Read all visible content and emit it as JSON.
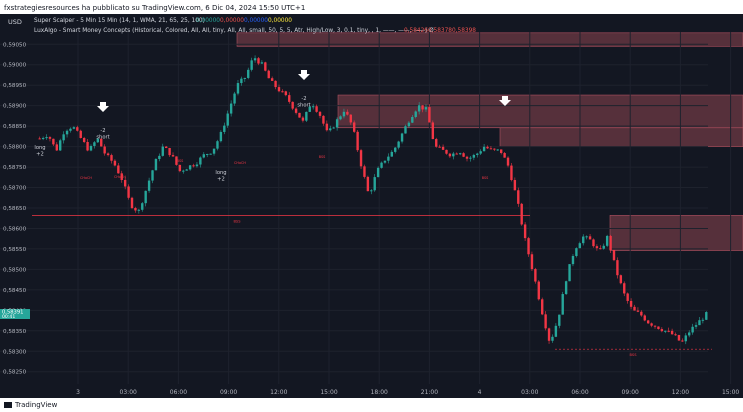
{
  "attribution": "fxstrategiesresources ha pubblicato su TradingView.com, 6 Dic 04, 2024 15:50 UTC+1",
  "currency": "USD",
  "indicators": {
    "super_scalper": {
      "label": "Super Scalper - 5 Min 15 Min (14, 1, WMA, 21, 65, 25, 100)",
      "values": [
        "0,00000",
        "0,00000",
        "0,00000",
        "0,00000"
      ],
      "colors": [
        "#26a69a",
        "#ef5350",
        "#2962ff",
        "#ffeb3b"
      ]
    },
    "luxalgo": {
      "label": "LuxAlgo - Smart Money Concepts (Historical, Colored, All, All, tiny, All, All, small, 50, 5, 5, Atr, High/Low, 3, 0.1, tiny, , 1, ——, ——, ——) Ø",
      "values": [
        "0,58426",
        "0,58378",
        "0,58398"
      ],
      "colors": [
        "#ef5350",
        "#ef5350",
        "#ef5350"
      ]
    }
  },
  "colors": {
    "bull": "#26a69a",
    "bear": "#f23645",
    "ob_zone": "#6e3a44",
    "bos_line": "#f23645"
  },
  "price_axis": {
    "labels": [
      "0,59050",
      "0,59000",
      "0,58950",
      "0,58900",
      "0,58850",
      "0,58800",
      "0,58750",
      "0,58700",
      "0,58650",
      "0,58600",
      "0,58550",
      "0,58500",
      "0,58450",
      "0,58400",
      "0,58350",
      "0,58300",
      "0,58250"
    ],
    "current_price": "0,58391",
    "current_countdown": "00:41"
  },
  "time_axis": {
    "labels": [
      "3",
      "03:00",
      "06:00",
      "09:00",
      "12:00",
      "15:00",
      "18:00",
      "21:00",
      "4",
      "03:00",
      "06:00",
      "09:00",
      "12:00",
      "15:00"
    ]
  },
  "signals": [
    {
      "text": "long +2",
      "kind": "long"
    },
    {
      "text": "-2 short",
      "kind": "short"
    },
    {
      "text": "long +2",
      "kind": "long"
    },
    {
      "text": "-2 short",
      "kind": "short"
    }
  ],
  "structure_labels": [
    "BSS",
    "BSS",
    "CHoCH",
    "CHoCH",
    "BSS",
    "BSS",
    "BSS",
    "CHoCH"
  ],
  "footer": {
    "brand": "TradingView"
  },
  "chart_data": {
    "type": "candlestick",
    "symbol_axis_unit": "USD",
    "ylim": [
      0.5822,
      0.5908
    ],
    "y_ticks": [
      0.5905,
      0.59,
      0.5895,
      0.589,
      0.5885,
      0.588,
      0.5875,
      0.587,
      0.5865,
      0.586,
      0.5855,
      0.585,
      0.5845,
      0.584,
      0.5835,
      0.583,
      0.5825
    ],
    "x_tick_labels": [
      "3",
      "03:00",
      "06:00",
      "09:00",
      "12:00",
      "15:00",
      "18:00",
      "21:00",
      "4",
      "03:00",
      "06:00",
      "09:00",
      "12:00",
      "15:00"
    ],
    "path_points": [
      0.5882,
      0.5883,
      0.5879,
      0.5884,
      0.5885,
      0.5882,
      0.5879,
      0.5882,
      0.5878,
      0.5876,
      0.5872,
      0.5866,
      0.5864,
      0.587,
      0.5876,
      0.588,
      0.5878,
      0.5874,
      0.5875,
      0.5876,
      0.5878,
      0.5879,
      0.5883,
      0.5889,
      0.5895,
      0.5897,
      0.5902,
      0.59,
      0.5896,
      0.5894,
      0.5892,
      0.5889,
      0.5886,
      0.5891,
      0.5888,
      0.5883,
      0.5886,
      0.5889,
      0.5885,
      0.5876,
      0.5868,
      0.5874,
      0.5877,
      0.5879,
      0.5883,
      0.5887,
      0.589,
      0.5889,
      0.588,
      0.5879,
      0.5878,
      0.5879,
      0.5877,
      0.5878,
      0.588,
      0.5879,
      0.5879,
      0.5875,
      0.5867,
      0.5857,
      0.5849,
      0.584,
      0.5832,
      0.5838,
      0.5848,
      0.5855,
      0.5858,
      0.5857,
      0.5854,
      0.5858,
      0.585,
      0.5844,
      0.584,
      0.5839,
      0.5837,
      0.5836,
      0.5835,
      0.5834,
      0.5832,
      0.5835,
      0.5837,
      0.5839
    ],
    "order_blocks": [
      {
        "y_top": 0.59078,
        "y_bottom": 0.59045
      },
      {
        "y_top": 0.58926,
        "y_bottom": 0.58846
      },
      {
        "y_top": 0.58846,
        "y_bottom": 0.588
      },
      {
        "y_top": 0.58632,
        "y_bottom": 0.58546
      }
    ],
    "bos_level": 0.58632,
    "lower_dashed_level": 0.58305
  }
}
